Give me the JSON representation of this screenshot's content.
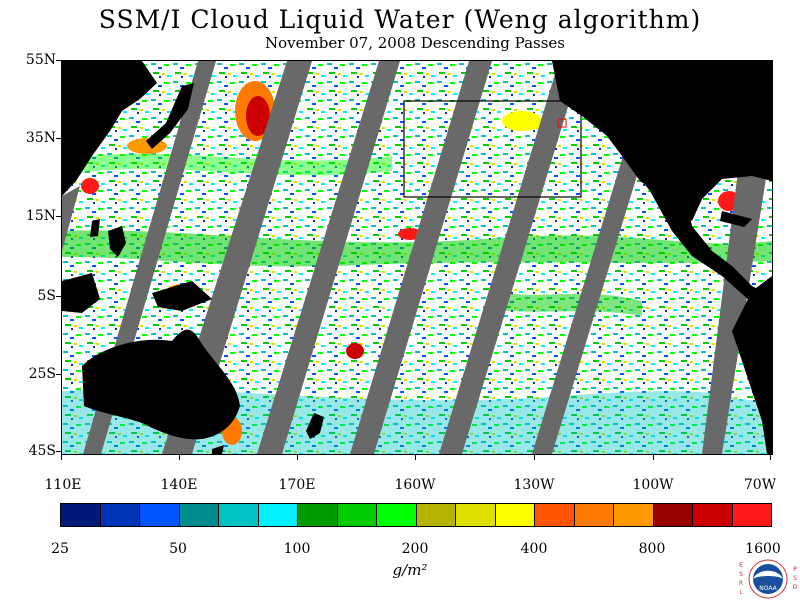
{
  "title": "SSM/I Cloud Liquid Water (Weng algorithm)",
  "subtitle": "November 07, 2008  Descending Passes",
  "lat_labels": [
    "55N",
    "35N",
    "15N",
    "5S",
    "25S",
    "45S"
  ],
  "lon_labels": [
    "110E",
    "140E",
    "170E",
    "160W",
    "130W",
    "100W",
    "70W"
  ],
  "colorbar": {
    "labels": [
      "25",
      "50",
      "100",
      "200",
      "400",
      "800",
      "1600"
    ],
    "colors": [
      "#001a7a",
      "#0033b8",
      "#0055ff",
      "#008c8c",
      "#00c2c2",
      "#00f0ff",
      "#009900",
      "#00cc00",
      "#00ff00",
      "#b3b300",
      "#e0e000",
      "#ffff00",
      "#ff5500",
      "#ff7a00",
      "#ff9900",
      "#990000",
      "#cc0000",
      "#ff1a1a"
    ],
    "units": "g/m²"
  },
  "logo": {
    "left_letters": [
      "E",
      "S",
      "R",
      "L"
    ],
    "right_letters": [
      "P",
      "S",
      "D"
    ],
    "center": "NOAA"
  },
  "colors": {
    "land": "#000000",
    "no_data": "#696969",
    "ocean_clear": "#ffffff"
  }
}
